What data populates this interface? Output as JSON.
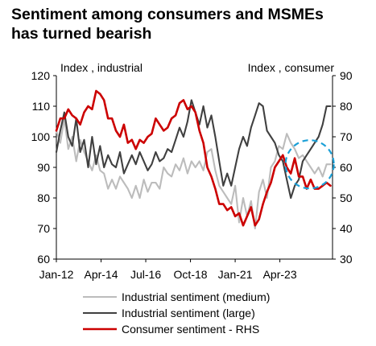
{
  "title_lines": [
    "Sentiment among consumers and MSMEs",
    "has turned bearish"
  ],
  "chart_data": {
    "type": "line",
    "title": "Sentiment among consumers and MSMEs has turned bearish",
    "ylabel_left": "Index , industrial",
    "ylabel_right": "Index , consumer",
    "ylim_left": [
      60,
      120
    ],
    "ylim_right": [
      30,
      90
    ],
    "yticks_left": [
      60,
      70,
      80,
      90,
      100,
      110,
      120
    ],
    "yticks_right": [
      30,
      40,
      50,
      60,
      70,
      80,
      90
    ],
    "xlim": [
      2012.0,
      2025.9
    ],
    "x_tick_labels": [
      "Jan-12",
      "Apr-14",
      "Jul-16",
      "Oct-18",
      "Jan-21",
      "Apr-23"
    ],
    "x_tick_values": [
      2012.0,
      2014.25,
      2016.5,
      2018.75,
      2021.0,
      2023.25
    ],
    "grid": false,
    "legend_position": "bottom",
    "series": [
      {
        "name": "Industrial sentiment (medium)",
        "axis": "left",
        "color": "#bcbcbc",
        "x": [
          2012.0,
          2012.2,
          2012.4,
          2012.6,
          2012.8,
          2013.0,
          2013.2,
          2013.4,
          2013.6,
          2013.8,
          2014.0,
          2014.2,
          2014.4,
          2014.6,
          2014.8,
          2015.0,
          2015.2,
          2015.4,
          2015.6,
          2015.8,
          2016.0,
          2016.2,
          2016.4,
          2016.6,
          2016.8,
          2017.0,
          2017.2,
          2017.4,
          2017.6,
          2017.8,
          2018.0,
          2018.2,
          2018.4,
          2018.6,
          2018.8,
          2019.0,
          2019.2,
          2019.4,
          2019.6,
          2019.8,
          2020.0,
          2020.2,
          2020.4,
          2020.6,
          2020.8,
          2021.0,
          2021.2,
          2021.4,
          2021.6,
          2021.8,
          2022.0,
          2022.2,
          2022.4,
          2022.6,
          2022.8,
          2023.0,
          2023.2,
          2023.4,
          2023.6,
          2023.8,
          2024.0,
          2024.2,
          2024.4,
          2024.6,
          2024.8,
          2025.0,
          2025.2,
          2025.4,
          2025.6,
          2025.8
        ],
        "values": [
          102,
          98,
          106,
          96,
          100,
          92,
          99,
          95,
          92,
          89,
          94,
          89,
          88,
          83,
          86,
          83,
          87,
          85,
          83,
          80,
          84,
          80,
          86,
          82,
          85,
          85,
          83,
          90,
          88,
          87,
          91,
          89,
          93,
          88,
          92,
          90,
          92,
          89,
          95,
          96,
          89,
          84,
          82,
          80,
          78,
          84,
          72,
          80,
          74,
          79,
          70,
          82,
          86,
          80,
          90,
          92,
          97,
          96,
          101,
          98,
          96,
          93,
          94,
          92,
          90,
          88,
          90,
          87,
          91,
          91
        ]
      },
      {
        "name": "Industrial sentiment (large)",
        "axis": "left",
        "color": "#404040",
        "x": [
          2012.0,
          2012.2,
          2012.4,
          2012.6,
          2012.8,
          2013.0,
          2013.2,
          2013.4,
          2013.6,
          2013.8,
          2014.0,
          2014.2,
          2014.4,
          2014.6,
          2014.8,
          2015.0,
          2015.2,
          2015.4,
          2015.6,
          2015.8,
          2016.0,
          2016.2,
          2016.4,
          2016.6,
          2016.8,
          2017.0,
          2017.2,
          2017.4,
          2017.6,
          2017.8,
          2018.0,
          2018.2,
          2018.4,
          2018.6,
          2018.8,
          2019.0,
          2019.2,
          2019.4,
          2019.6,
          2019.8,
          2020.0,
          2020.2,
          2020.4,
          2020.6,
          2020.8,
          2021.0,
          2021.2,
          2021.4,
          2021.6,
          2021.8,
          2022.0,
          2022.2,
          2022.4,
          2022.6,
          2022.8,
          2023.0,
          2023.2,
          2023.4,
          2023.6,
          2023.8,
          2024.0,
          2024.2,
          2024.4,
          2024.6,
          2024.8,
          2025.0,
          2025.2,
          2025.4,
          2025.6,
          2025.8
        ],
        "values": [
          95,
          102,
          108,
          100,
          97,
          106,
          95,
          99,
          90,
          100,
          91,
          97,
          90,
          94,
          91,
          90,
          95,
          88,
          91,
          94,
          91,
          95,
          92,
          89,
          91,
          95,
          92,
          93,
          96,
          95,
          99,
          103,
          100,
          105,
          112,
          108,
          104,
          110,
          103,
          107,
          100,
          92,
          84,
          88,
          84,
          90,
          96,
          100,
          97,
          103,
          107,
          111,
          110,
          102,
          100,
          98,
          94,
          92,
          86,
          80,
          84,
          86,
          92,
          94,
          96,
          98,
          100,
          104,
          110,
          110
        ]
      },
      {
        "name": "Consumer sentiment - RHS",
        "axis": "right",
        "color": "#cc0000",
        "x": [
          2012.0,
          2012.2,
          2012.4,
          2012.6,
          2012.8,
          2013.0,
          2013.2,
          2013.4,
          2013.6,
          2013.8,
          2014.0,
          2014.2,
          2014.4,
          2014.6,
          2014.8,
          2015.0,
          2015.2,
          2015.4,
          2015.6,
          2015.8,
          2016.0,
          2016.2,
          2016.4,
          2016.6,
          2016.8,
          2017.0,
          2017.2,
          2017.4,
          2017.6,
          2017.8,
          2018.0,
          2018.2,
          2018.4,
          2018.6,
          2018.8,
          2019.0,
          2019.2,
          2019.4,
          2019.6,
          2019.8,
          2020.0,
          2020.2,
          2020.4,
          2020.6,
          2020.8,
          2021.0,
          2021.2,
          2021.4,
          2021.6,
          2021.8,
          2022.0,
          2022.2,
          2022.4,
          2022.6,
          2022.8,
          2023.0,
          2023.2,
          2023.4,
          2023.6,
          2023.8,
          2024.0,
          2024.2,
          2024.4,
          2024.6,
          2024.8,
          2025.0,
          2025.2,
          2025.4,
          2025.6,
          2025.8
        ],
        "values": [
          72,
          76,
          76,
          79,
          77,
          76,
          74,
          78,
          80,
          79,
          85,
          84,
          82,
          76,
          76,
          72,
          70,
          74,
          68,
          69,
          66,
          69,
          68,
          70,
          71,
          76,
          74,
          72,
          73,
          76,
          77,
          81,
          82,
          79,
          80,
          78,
          72,
          68,
          60,
          57,
          53,
          48,
          48,
          46,
          47,
          44,
          45,
          41,
          44,
          47,
          41,
          43,
          48,
          52,
          55,
          60,
          62,
          64,
          60,
          58,
          63,
          57,
          57,
          53,
          56,
          53,
          53,
          54,
          55,
          54
        ]
      }
    ],
    "annotations": [
      {
        "type": "ellipse",
        "style": "dashed",
        "color": "#1ba0d7",
        "description_anchor": "recent period"
      }
    ]
  },
  "legend": {
    "items": [
      {
        "label": "Industrial sentiment (medium)",
        "color": "#bcbcbc"
      },
      {
        "label": "Industrial sentiment (large)",
        "color": "#404040"
      },
      {
        "label": "Consumer sentiment - RHS",
        "color": "#cc0000"
      }
    ]
  }
}
